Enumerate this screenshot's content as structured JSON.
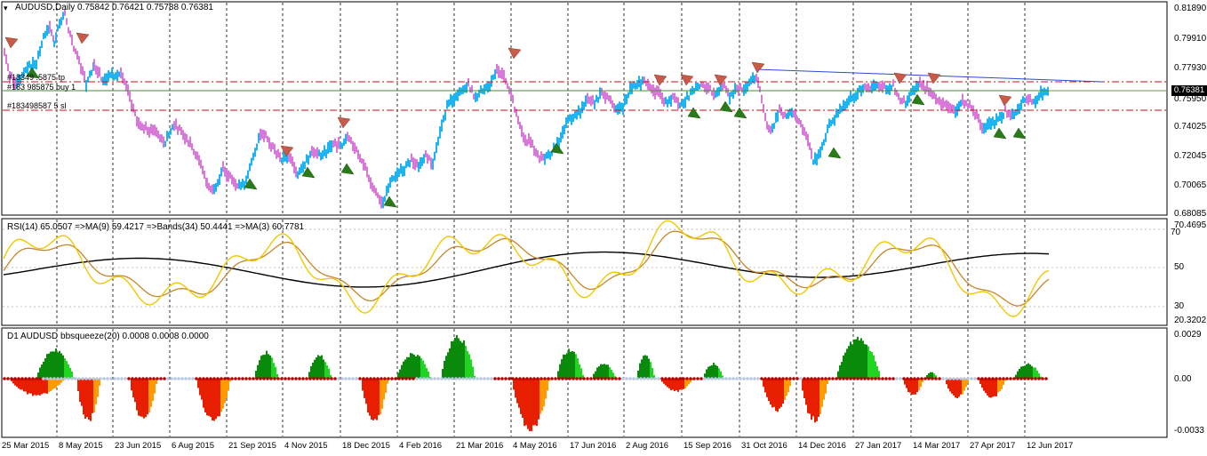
{
  "main": {
    "symbol_label": "AUDUSD,Daily",
    "ohlc": [
      "0.75842",
      "0.76421",
      "0.75788",
      "0.76381"
    ],
    "current_price": "0.76381",
    "price_ticks": [
      "0.81890",
      "0.79910",
      "0.77930",
      "0.75950",
      "0.74025",
      "0.72045",
      "0.70065",
      "0.68085"
    ],
    "order_lines": [
      "#18349 .5875 tp",
      "#183 985875 buy 1",
      "#183498587 5 sl"
    ]
  },
  "rsi_panel": {
    "label": "RSI(14) 65.0507  =>MA(9) 59.4217  =>Bands(34) 50.4441  =>MA(3) 60.7781",
    "ticks": [
      "70.4695",
      "70",
      "50",
      "30",
      "20.3202"
    ]
  },
  "squeeze_panel": {
    "label": "D1 AUDUSD bbsqueeze(20) 0.0008 0.0008 0.0000",
    "ticks": [
      "0.0029",
      "0.00",
      "-0.0033"
    ]
  },
  "x_axis": [
    "25 Mar 2015",
    "8 May 2015",
    "23 Jun 2015",
    "6 Aug 2015",
    "21 Sep 2015",
    "4 Nov 2015",
    "18 Dec 2015",
    "4 Feb 2016",
    "21 Mar 2016",
    "4 May 2016",
    "17 Jun 2016",
    "2 Aug 2016",
    "15 Sep 2016",
    "31 Oct 2016",
    "14 Dec 2016",
    "27 Jan 2017",
    "14 Mar 2017",
    "27 Apr 2017",
    "12 Jun 2017"
  ],
  "colors": {
    "bull": "#1eb4f0",
    "bear": "#d878d8",
    "rsi": "#f0c800",
    "rsi_ma": "#c8862a",
    "bands_mid": "#000000",
    "hist_green_dark": "#0a8a0a",
    "hist_green": "#22d422",
    "hist_red": "#e81e00",
    "hist_orange": "#ff9a00",
    "squeeze_dot": "#b40000",
    "level_green": "#4a8a3a",
    "level_red": "#d01010",
    "trendline": "#2a4ad8"
  }
}
